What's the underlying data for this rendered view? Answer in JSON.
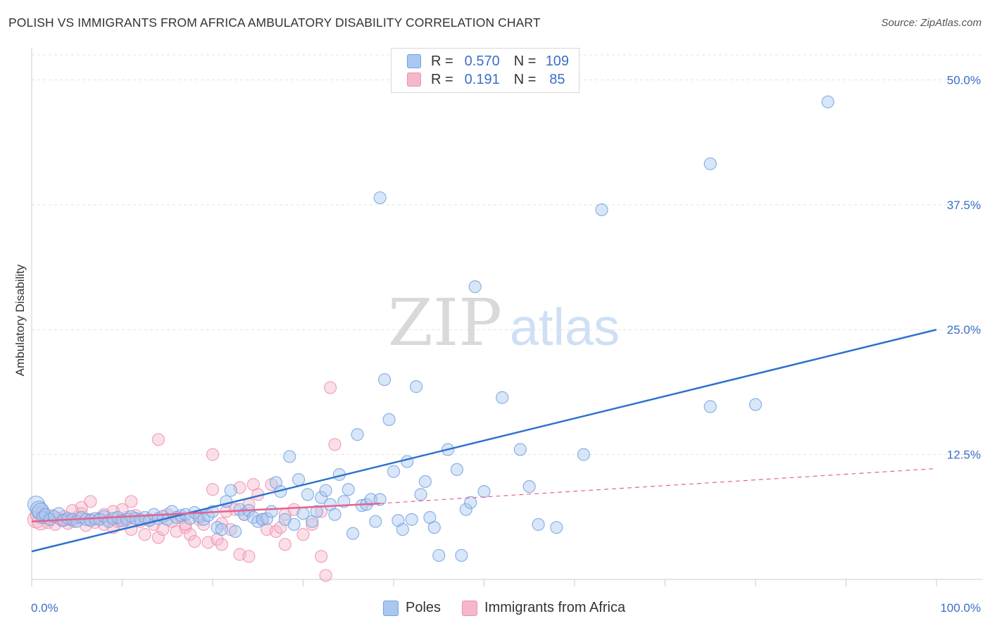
{
  "title": "POLISH VS IMMIGRANTS FROM AFRICA AMBULATORY DISABILITY CORRELATION CHART",
  "source": "Source: ZipAtlas.com",
  "watermark": {
    "zip": "ZIP",
    "atlas": "atlas"
  },
  "legend": {
    "rows": [
      {
        "r_label": "R =",
        "r_value": "0.570",
        "n_label": "N =",
        "n_value": "109",
        "color": "#a9c8f0"
      },
      {
        "r_label": "R =",
        "r_value": "0.191",
        "n_label": "N =",
        "n_value": "85",
        "color": "#f5b8cb"
      }
    ]
  },
  "bottom_legend": [
    "Poles",
    "Immigrants from Africa"
  ],
  "chart_data": {
    "type": "scatter",
    "title": "POLISH VS IMMIGRANTS FROM AFRICA AMBULATORY DISABILITY CORRELATION CHART",
    "xlabel": "",
    "ylabel": "Ambulatory Disability",
    "xlim": [
      0,
      100
    ],
    "ylim": [
      0,
      52.5
    ],
    "x_tick_labels": [
      "0.0%",
      "100.0%"
    ],
    "y_ticks": [
      12.5,
      25.0,
      37.5,
      50.0
    ],
    "y_tick_labels": [
      "12.5%",
      "25.0%",
      "37.5%",
      "50.0%"
    ],
    "grid": true,
    "legend_position": "top-center",
    "series": [
      {
        "name": "Poles",
        "color": "#6fa1e3",
        "fill": "#a9c8f0",
        "trend_color": "#2f72cc",
        "trend": {
          "x": [
            0,
            100
          ],
          "y": [
            2.8,
            25.0
          ]
        },
        "points": [
          [
            0.5,
            7.5
          ],
          [
            0.8,
            7.0
          ],
          [
            1.0,
            6.8
          ],
          [
            1.2,
            6.2
          ],
          [
            1.5,
            6.5
          ],
          [
            2.0,
            6.0
          ],
          [
            2.5,
            6.3
          ],
          [
            3.0,
            6.6
          ],
          [
            3.5,
            5.9
          ],
          [
            4.0,
            6.1
          ],
          [
            4.5,
            6.0
          ],
          [
            5.0,
            5.8
          ],
          [
            5.5,
            6.2
          ],
          [
            6.0,
            6.0
          ],
          [
            6.5,
            5.9
          ],
          [
            7.0,
            6.1
          ],
          [
            7.5,
            6.0
          ],
          [
            8.0,
            6.3
          ],
          [
            8.5,
            5.8
          ],
          [
            9.0,
            6.1
          ],
          [
            9.5,
            6.2
          ],
          [
            10.0,
            5.9
          ],
          [
            10.5,
            6.0
          ],
          [
            11.0,
            6.3
          ],
          [
            11.5,
            6.1
          ],
          [
            12.0,
            6.0
          ],
          [
            12.5,
            6.2
          ],
          [
            13.0,
            5.9
          ],
          [
            13.5,
            6.5
          ],
          [
            14.0,
            6.1
          ],
          [
            14.5,
            6.3
          ],
          [
            15.0,
            6.0
          ],
          [
            15.5,
            6.8
          ],
          [
            16.0,
            6.2
          ],
          [
            16.5,
            6.4
          ],
          [
            17.0,
            6.5
          ],
          [
            17.5,
            6.1
          ],
          [
            18.0,
            6.7
          ],
          [
            18.5,
            6.3
          ],
          [
            19.0,
            6.0
          ],
          [
            19.5,
            6.4
          ],
          [
            20.0,
            6.8
          ],
          [
            20.5,
            5.2
          ],
          [
            21.0,
            5.0
          ],
          [
            21.5,
            7.8
          ],
          [
            22.0,
            8.9
          ],
          [
            22.5,
            4.8
          ],
          [
            23.0,
            7.0
          ],
          [
            23.5,
            6.5
          ],
          [
            24.0,
            6.9
          ],
          [
            24.5,
            6.2
          ],
          [
            25.0,
            5.8
          ],
          [
            25.5,
            6.0
          ],
          [
            26.0,
            6.1
          ],
          [
            26.5,
            6.8
          ],
          [
            27.0,
            9.7
          ],
          [
            27.5,
            8.8
          ],
          [
            28.0,
            6.0
          ],
          [
            28.5,
            12.3
          ],
          [
            29.0,
            5.5
          ],
          [
            29.5,
            10.0
          ],
          [
            30.0,
            6.6
          ],
          [
            30.5,
            8.5
          ],
          [
            31.0,
            5.8
          ],
          [
            31.5,
            6.8
          ],
          [
            32.0,
            8.2
          ],
          [
            32.5,
            8.9
          ],
          [
            33.0,
            7.5
          ],
          [
            33.5,
            6.5
          ],
          [
            34.0,
            10.5
          ],
          [
            34.5,
            7.8
          ],
          [
            35.0,
            9.0
          ],
          [
            35.5,
            4.6
          ],
          [
            36.0,
            14.5
          ],
          [
            36.5,
            7.4
          ],
          [
            37.0,
            7.5
          ],
          [
            37.5,
            8.0
          ],
          [
            38.0,
            5.8
          ],
          [
            38.5,
            8.0
          ],
          [
            39.0,
            20.0
          ],
          [
            39.5,
            16.0
          ],
          [
            40.0,
            10.8
          ],
          [
            40.5,
            5.9
          ],
          [
            41.0,
            5.0
          ],
          [
            41.5,
            11.8
          ],
          [
            42.0,
            6.0
          ],
          [
            42.5,
            19.3
          ],
          [
            43.0,
            8.5
          ],
          [
            43.5,
            9.8
          ],
          [
            44.0,
            6.2
          ],
          [
            44.5,
            5.2
          ],
          [
            45.0,
            2.4
          ],
          [
            46.0,
            13.0
          ],
          [
            47.0,
            11.0
          ],
          [
            47.5,
            2.4
          ],
          [
            48.0,
            7.0
          ],
          [
            48.5,
            7.7
          ],
          [
            50.0,
            8.8
          ],
          [
            52.0,
            18.2
          ],
          [
            54.0,
            13.0
          ],
          [
            55.0,
            9.3
          ],
          [
            56.0,
            5.5
          ],
          [
            58.0,
            5.2
          ],
          [
            61.0,
            12.5
          ],
          [
            75.0,
            17.3
          ],
          [
            80.0,
            17.5
          ],
          [
            38.5,
            38.2
          ],
          [
            49.0,
            29.3
          ],
          [
            63.0,
            37.0
          ],
          [
            75.0,
            41.6
          ],
          [
            88.0,
            47.8
          ]
        ]
      },
      {
        "name": "Immigrants from Africa",
        "color": "#ef8fab",
        "fill": "#f5b8cb",
        "trend_color": "#e5628e",
        "trend": {
          "x": [
            0,
            38.5
          ],
          "y": [
            5.8,
            7.6
          ]
        },
        "trend_dashed": {
          "x": [
            38.5,
            100
          ],
          "y": [
            7.6,
            11.1
          ]
        },
        "points": [
          [
            0.5,
            6.0
          ],
          [
            0.8,
            6.5
          ],
          [
            1.0,
            5.8
          ],
          [
            1.2,
            6.8
          ],
          [
            1.5,
            6.2
          ],
          [
            1.8,
            5.7
          ],
          [
            2.0,
            6.0
          ],
          [
            2.3,
            6.4
          ],
          [
            2.6,
            5.5
          ],
          [
            3.0,
            6.1
          ],
          [
            3.3,
            5.9
          ],
          [
            3.6,
            6.3
          ],
          [
            4.0,
            5.6
          ],
          [
            4.3,
            6.0
          ],
          [
            4.6,
            5.8
          ],
          [
            5.0,
            6.2
          ],
          [
            5.5,
            6.6
          ],
          [
            6.0,
            5.4
          ],
          [
            6.5,
            6.0
          ],
          [
            7.0,
            5.7
          ],
          [
            7.5,
            6.1
          ],
          [
            8.0,
            5.5
          ],
          [
            8.5,
            6.0
          ],
          [
            9.0,
            5.2
          ],
          [
            9.5,
            5.8
          ],
          [
            10.0,
            5.6
          ],
          [
            10.5,
            6.2
          ],
          [
            11.0,
            5.0
          ],
          [
            11.5,
            6.4
          ],
          [
            12.0,
            5.8
          ],
          [
            12.5,
            4.5
          ],
          [
            13.0,
            6.0
          ],
          [
            13.5,
            5.5
          ],
          [
            14.0,
            4.2
          ],
          [
            14.5,
            5.0
          ],
          [
            15.0,
            6.5
          ],
          [
            15.5,
            5.8
          ],
          [
            16.0,
            4.8
          ],
          [
            16.5,
            6.2
          ],
          [
            17.0,
            5.2
          ],
          [
            17.5,
            4.5
          ],
          [
            18.0,
            3.8
          ],
          [
            18.5,
            6.0
          ],
          [
            19.0,
            5.5
          ],
          [
            19.5,
            3.7
          ],
          [
            20.0,
            9.0
          ],
          [
            20.5,
            4.0
          ],
          [
            21.0,
            5.6
          ],
          [
            21.5,
            6.8
          ],
          [
            22.0,
            5.0
          ],
          [
            22.5,
            7.0
          ],
          [
            23.0,
            9.2
          ],
          [
            23.5,
            6.5
          ],
          [
            24.0,
            7.5
          ],
          [
            24.5,
            9.5
          ],
          [
            25.0,
            8.5
          ],
          [
            25.5,
            6.0
          ],
          [
            26.0,
            5.0
          ],
          [
            26.5,
            9.5
          ],
          [
            27.0,
            4.8
          ],
          [
            27.5,
            5.2
          ],
          [
            28.0,
            6.5
          ],
          [
            29.0,
            7.0
          ],
          [
            30.0,
            4.5
          ],
          [
            31.0,
            5.5
          ],
          [
            32.0,
            6.8
          ],
          [
            33.0,
            19.2
          ],
          [
            33.5,
            13.5
          ],
          [
            14.0,
            14.0
          ],
          [
            20.0,
            12.5
          ],
          [
            23.0,
            2.5
          ],
          [
            24.0,
            2.3
          ],
          [
            32.0,
            2.3
          ],
          [
            32.5,
            0.4
          ],
          [
            28.0,
            3.5
          ],
          [
            21.0,
            3.5
          ],
          [
            17.0,
            5.5
          ],
          [
            11.0,
            7.8
          ],
          [
            10.0,
            7.0
          ],
          [
            9.0,
            6.8
          ],
          [
            8.0,
            6.5
          ],
          [
            6.5,
            7.8
          ],
          [
            5.5,
            7.2
          ],
          [
            4.5,
            6.9
          ],
          [
            3.5,
            6.0
          ]
        ]
      }
    ]
  }
}
